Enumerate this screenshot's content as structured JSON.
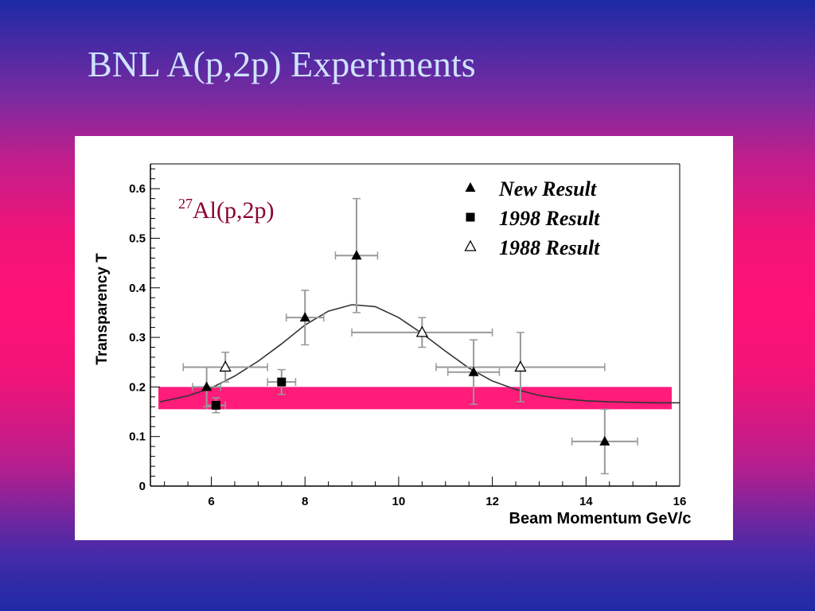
{
  "slide": {
    "title": "BNL A(p,2p) Experiments"
  },
  "colors": {
    "band": "#ff1c7a",
    "annotation": "#8b0030",
    "curve": "#333333",
    "errorbar": "#999999",
    "marker": "#000000"
  },
  "chart_data": {
    "type": "scatter",
    "xlabel": "Beam Momentum GeV/c",
    "ylabel": "Transparency T",
    "xlim": [
      4.7,
      16
    ],
    "ylim": [
      0,
      0.65
    ],
    "x_ticks": [
      6,
      8,
      10,
      12,
      14,
      16
    ],
    "y_ticks": [
      0,
      0.1,
      0.2,
      0.3,
      0.4,
      0.5,
      0.6
    ],
    "x_tick_labels": [
      "6",
      "8",
      "10",
      "12",
      "14",
      "16"
    ],
    "y_tick_labels": [
      "0",
      "0.1",
      "0.2",
      "0.3",
      "0.4",
      "0.5",
      "0.6"
    ],
    "annotation": {
      "mass_number": "27",
      "reaction": "Al(p,2p)"
    },
    "legend_position": "top-right",
    "grid": false,
    "band": {
      "y_low": 0.155,
      "y_high": 0.2
    },
    "curve": {
      "x": [
        4.9,
        5.5,
        6.0,
        6.5,
        7.0,
        7.5,
        8.0,
        8.5,
        9.0,
        9.5,
        10.0,
        10.5,
        11.0,
        11.5,
        12.0,
        12.5,
        13.0,
        13.5,
        14.0,
        14.5,
        15.0,
        15.5,
        16.0
      ],
      "y": [
        0.17,
        0.182,
        0.198,
        0.222,
        0.252,
        0.287,
        0.325,
        0.353,
        0.366,
        0.362,
        0.34,
        0.308,
        0.272,
        0.238,
        0.212,
        0.195,
        0.183,
        0.176,
        0.172,
        0.17,
        0.169,
        0.168,
        0.168
      ]
    },
    "series": [
      {
        "name": "New Result",
        "marker": "filled-triangle",
        "points": [
          {
            "x": 5.9,
            "y": 0.2,
            "xerr": 0.3,
            "yerr": 0.04
          },
          {
            "x": 8.0,
            "y": 0.34,
            "xerr": 0.4,
            "yerr": 0.055
          },
          {
            "x": 9.1,
            "y": 0.465,
            "xerr": 0.45,
            "yerr": 0.115
          },
          {
            "x": 11.6,
            "y": 0.23,
            "xerr": 0.55,
            "yerr": 0.065
          },
          {
            "x": 14.4,
            "y": 0.09,
            "xerr": 0.7,
            "yerr": 0.065
          }
        ]
      },
      {
        "name": "1998 Result",
        "marker": "filled-square",
        "points": [
          {
            "x": 6.1,
            "y": 0.163,
            "xerr": 0.2,
            "yerr": 0.015
          },
          {
            "x": 7.5,
            "y": 0.21,
            "xerr": 0.3,
            "yerr": 0.025
          }
        ]
      },
      {
        "name": "1988 Result",
        "marker": "open-triangle",
        "points": [
          {
            "x": 6.3,
            "y": 0.24,
            "xerr": 0.9,
            "yerr": 0.03
          },
          {
            "x": 10.5,
            "y": 0.31,
            "xerr": 1.5,
            "yerr": 0.03
          },
          {
            "x": 12.6,
            "y": 0.24,
            "xerr": 1.8,
            "yerr": 0.07
          }
        ]
      }
    ]
  }
}
